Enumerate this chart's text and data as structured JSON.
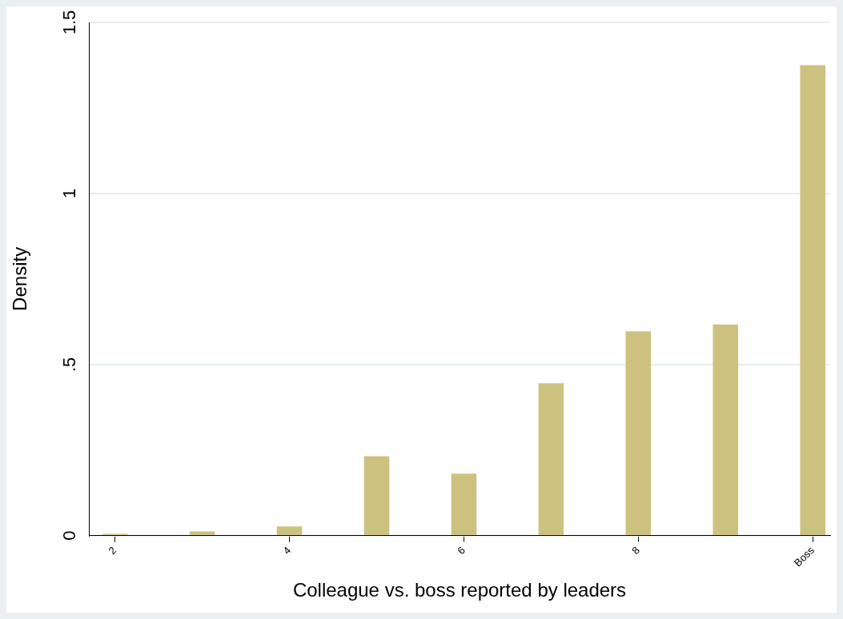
{
  "chart_data": {
    "type": "bar",
    "xlabel": "Colleague vs. boss reported by leaders",
    "ylabel": "Density",
    "x": [
      2,
      3,
      4,
      5,
      6,
      7,
      8,
      9,
      10
    ],
    "values": [
      0.005,
      0.012,
      0.027,
      0.232,
      0.181,
      0.445,
      0.597,
      0.617,
      1.375
    ],
    "color": "#cdc17f",
    "xlim": [
      1.7,
      10.2
    ],
    "xticks": [
      2,
      4,
      6,
      8,
      {
        "value": 10,
        "label": "Boss"
      }
    ],
    "ylim": [
      0,
      1.5
    ],
    "yticks": [
      0,
      {
        "value": 0.5,
        "label": ".5"
      },
      1,
      1.5
    ],
    "grid": "y",
    "legend": false
  }
}
